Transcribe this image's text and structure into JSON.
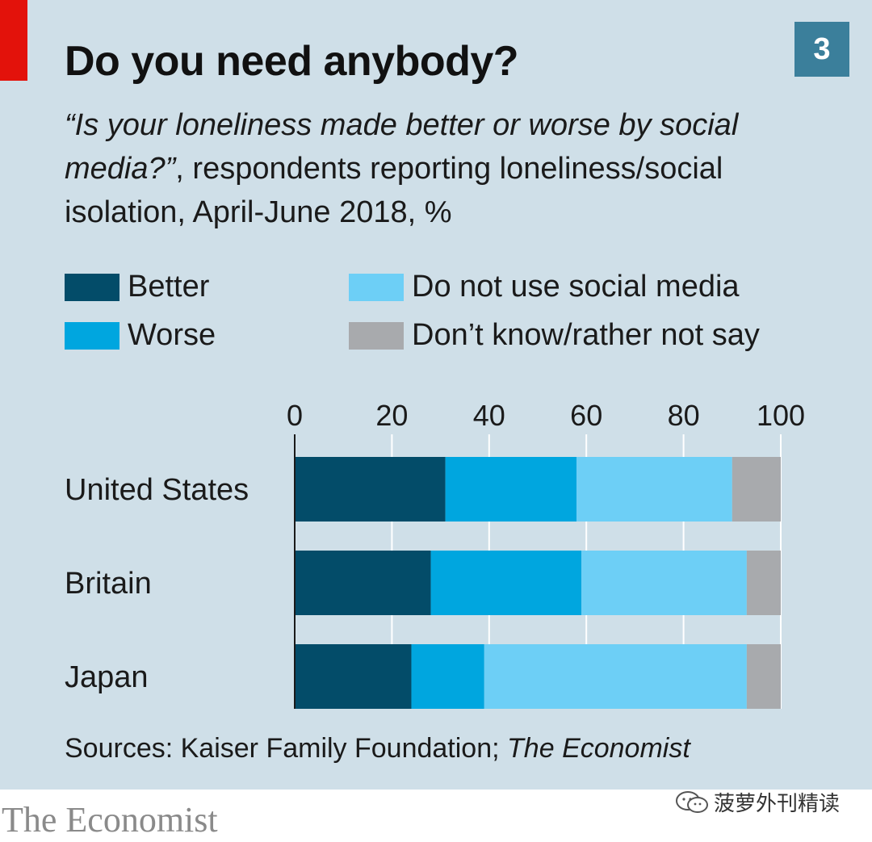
{
  "header": {
    "title": "Do you need anybody?",
    "badge": "3",
    "subtitle_question": "“Is your loneliness made better or worse by social media?”",
    "subtitle_rest": ", respondents reporting loneliness/social isolation, April-June 2018, %"
  },
  "colors": {
    "panel": "#cfdfe8",
    "better": "#034c69",
    "worse": "#00a6df",
    "no_social": "#6dcff6",
    "dont_know": "#a8aaad",
    "accent_red": "#e3120b"
  },
  "legend": [
    {
      "label": "Better",
      "color": "#034c69"
    },
    {
      "label": "Worse",
      "color": "#00a6df"
    },
    {
      "label": "Do not use social media",
      "color": "#6dcff6"
    },
    {
      "label": "Don’t know/rather not say",
      "color": "#a8aaad"
    }
  ],
  "chart_data": {
    "type": "bar",
    "orientation": "horizontal",
    "stacked": true,
    "categories": [
      "United States",
      "Britain",
      "Japan"
    ],
    "series": [
      {
        "name": "Better",
        "values": [
          31,
          28,
          24
        ]
      },
      {
        "name": "Worse",
        "values": [
          27,
          31,
          15
        ]
      },
      {
        "name": "Do not use social media",
        "values": [
          32,
          34,
          54
        ]
      },
      {
        "name": "Don’t know/rather not say",
        "values": [
          10,
          7,
          7
        ]
      }
    ],
    "ticks": [
      0,
      20,
      40,
      60,
      80,
      100
    ],
    "xlim": [
      0,
      100
    ],
    "title": "Do you need anybody?",
    "xlabel": "",
    "ylabel": "",
    "grid": true,
    "axis_position": "top"
  },
  "footer": {
    "source_prefix": "Sources: Kaiser Family Foundation; ",
    "source_italic": "The Economist",
    "brand": "The Economist",
    "watermark": "菠萝外刊精读"
  }
}
